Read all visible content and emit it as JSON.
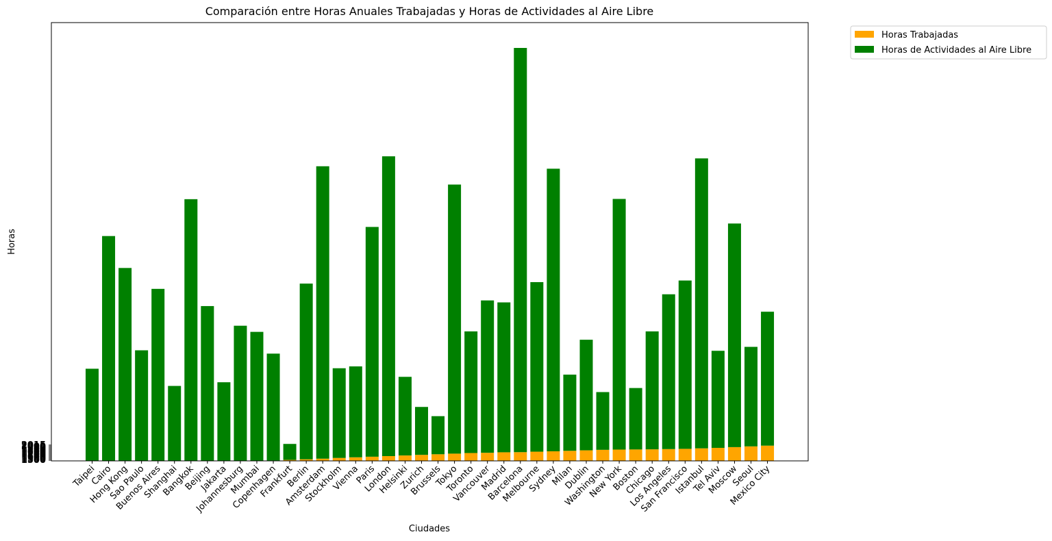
{
  "chart_data": {
    "type": "bar",
    "stacked": true,
    "title": "Comparación entre Horas Anuales Trabajadas y Horas de Actividades al Aire Libre",
    "xlabel": "Ciudades",
    "ylabel": "Horas",
    "categories": [
      "Taipei",
      "Cairo",
      "Hong Kong",
      "Sao Paulo",
      "Buenos Aires",
      "Shanghai",
      "Bangkok",
      "Beijing",
      "Jakarta",
      "Johannesburg",
      "Mumbai",
      "Copenhagen",
      "Frankfurt",
      "Berlin",
      "Amsterdam",
      "Stockholm",
      "Vienna",
      "Paris",
      "London",
      "Helsinki",
      "Zurich",
      "Brussels",
      "Tokyo",
      "Toronto",
      "Vancouver",
      "Madrid",
      "Barcelona",
      "Melbourne",
      "Sydney",
      "Milan",
      "Dublin",
      "Washington",
      "New York",
      "Boston",
      "Chicago",
      "Los Angeles",
      "San Francisco",
      "Istanbul",
      "Tel Aviv",
      "Moscow",
      "Seoul",
      "Mexico City"
    ],
    "series": [
      {
        "name": "Horas Trabajadas",
        "color": "#ffa500",
        "values": [
          0.0,
          0.0,
          0.0,
          0.0,
          0.0,
          0.0,
          0.0,
          0.0,
          0.0,
          0.0,
          0.0,
          0.3,
          0.8,
          1.3,
          1.8,
          2.4,
          2.9,
          3.4,
          3.9,
          4.4,
          4.9,
          5.4,
          5.9,
          6.4,
          6.6,
          7.0,
          7.1,
          7.5,
          7.8,
          8.2,
          8.6,
          9.0,
          9.2,
          9.3,
          9.4,
          9.6,
          9.8,
          10.2,
          10.6,
          11.2,
          11.8,
          12.4
        ]
      },
      {
        "name": "Horas de Actividades al Aire Libre",
        "color": "#008000",
        "values": [
          75,
          183,
          157,
          90,
          140,
          61,
          213,
          126,
          64,
          110,
          105,
          87,
          13,
          143,
          238,
          73,
          74,
          187,
          244,
          64,
          39,
          31,
          219,
          99,
          124,
          122,
          329,
          138,
          230,
          62,
          90,
          47,
          204,
          50,
          96,
          126,
          137,
          236,
          79,
          182,
          81,
          109
        ]
      }
    ],
    "y_ticks": [
      "2015",
      "2000",
      "1950",
      "1900",
      "1850",
      "1800",
      "1750",
      "1700",
      "1650",
      "1600",
      "1550",
      "1500"
    ],
    "legend": {
      "position": "outside-top-right"
    }
  }
}
